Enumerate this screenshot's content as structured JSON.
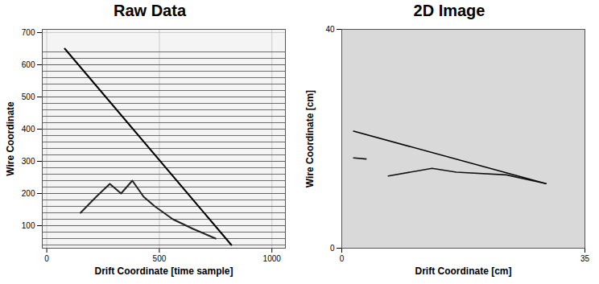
{
  "chart_data": [
    {
      "type": "line",
      "title": "Raw Data",
      "x_label": "Drift Coordinate [time sample]",
      "y_label": "Wire Coordinate",
      "xlim": [
        -20,
        1060
      ],
      "ylim": [
        30,
        710
      ],
      "xticks": [
        0,
        500,
        1000
      ],
      "yticks": [
        100,
        200,
        300,
        400,
        500,
        600,
        700
      ],
      "grid": true,
      "wire_baselines": [
        40,
        60,
        80,
        100,
        120,
        140,
        160,
        180,
        200,
        220,
        240,
        260,
        280,
        300,
        320,
        340,
        360,
        380,
        400,
        420,
        440,
        460,
        480,
        500,
        520,
        540,
        560,
        580,
        600,
        620,
        640
      ],
      "series": [
        {
          "color": "#000000",
          "x": [
            80,
            820
          ],
          "values": [
            650,
            40
          ]
        },
        {
          "color": "#222222",
          "x": [
            150,
            220,
            280,
            330,
            380,
            430,
            480,
            560,
            650,
            750
          ],
          "values": [
            140,
            190,
            230,
            200,
            240,
            190,
            160,
            120,
            90,
            60
          ]
        }
      ]
    },
    {
      "type": "line",
      "title": "2D Image",
      "x_label": "Drift Coordinate [cm]",
      "y_label": "Wire Coordinate [cm]",
      "xlim": [
        0,
        35
      ],
      "ylim": [
        0,
        40
      ],
      "xticks": [
        0,
        35
      ],
      "yticks": [
        0,
        40
      ],
      "grid": false,
      "series": [
        {
          "color": "#000000",
          "x": [
            1.7,
            29.4
          ],
          "values": [
            21.4,
            11.8
          ]
        },
        {
          "color": "#111111",
          "x": [
            1.7,
            3.5
          ],
          "values": [
            16.5,
            16.3
          ]
        },
        {
          "color": "#111111",
          "x": [
            6.7,
            13,
            16.5,
            23.7,
            29.4
          ],
          "values": [
            13.2,
            14.6,
            13.9,
            13.4,
            11.8
          ]
        }
      ]
    }
  ]
}
